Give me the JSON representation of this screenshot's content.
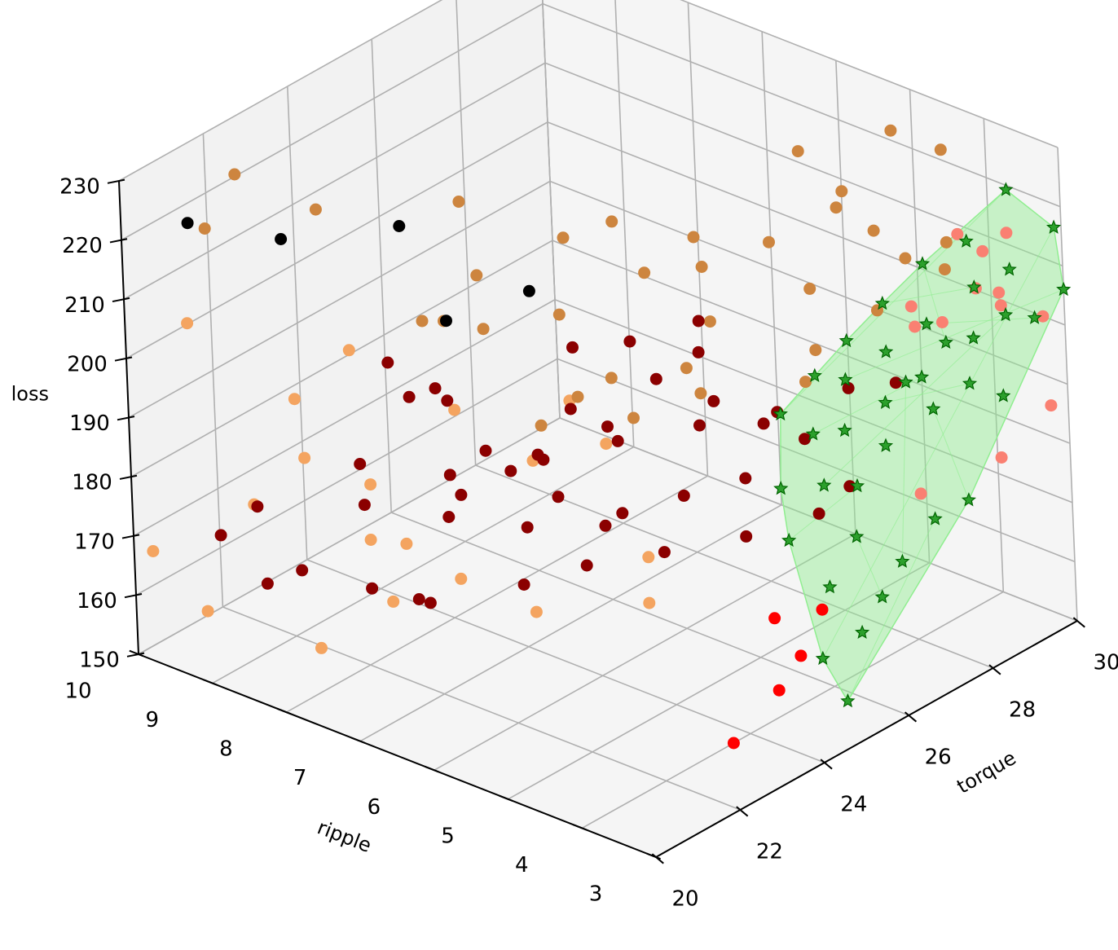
{
  "chart_data": {
    "type": "scatter3d",
    "title": "",
    "xlabel": "torque",
    "ylabel": "ripple",
    "zlabel": "loss",
    "xlim": [
      20,
      30
    ],
    "ylim": [
      3,
      10
    ],
    "zlim": [
      150,
      230
    ],
    "x_ticks": [
      "20",
      "22",
      "24",
      "26",
      "28",
      "30"
    ],
    "y_ticks": [
      "3",
      "4",
      "5",
      "6",
      "7",
      "8",
      "9",
      "10"
    ],
    "z_ticks": [
      "150",
      "160",
      "170",
      "180",
      "190",
      "200",
      "210",
      "220",
      "230"
    ],
    "grid": true,
    "colors": {
      "pane_back": "#f2f2f2",
      "pane_side": "#f5f5f5",
      "pane_floor": "#f5f5f5",
      "grid": "#b0b0b0"
    },
    "series": [
      {
        "color": "#f4a460",
        "marker": "circle",
        "points": [
          [
            20.1,
            9.8,
            168
          ],
          [
            20.3,
            9.2,
            160
          ],
          [
            20.2,
            7.6,
            162
          ],
          [
            20.8,
            8.8,
            178
          ],
          [
            21.0,
            8.2,
            188
          ],
          [
            21.5,
            8.6,
            194
          ],
          [
            20.9,
            7.0,
            170
          ],
          [
            21.6,
            7.2,
            176
          ],
          [
            22.0,
            7.9,
            181
          ],
          [
            22.5,
            7.0,
            196
          ],
          [
            22.8,
            8.4,
            166
          ],
          [
            23.0,
            7.3,
            164
          ],
          [
            23.2,
            6.4,
            162
          ],
          [
            23.6,
            6.6,
            185
          ],
          [
            24.0,
            6.3,
            195
          ],
          [
            24.3,
            6.0,
            188
          ],
          [
            24.5,
            5.6,
            170
          ],
          [
            20.6,
            9.5,
            206
          ],
          [
            21.8,
            8.0,
            204
          ],
          [
            23.8,
            5.2,
            167
          ]
        ]
      },
      {
        "color": "#cd853f",
        "marker": "circle",
        "points": [
          [
            21.0,
            9.0,
            232
          ],
          [
            21.5,
            8.2,
            228
          ],
          [
            21.1,
            9.5,
            220
          ],
          [
            22.8,
            7.0,
            230
          ],
          [
            22.3,
            6.5,
            222
          ],
          [
            22.0,
            6.8,
            214
          ],
          [
            23.5,
            6.0,
            226
          ],
          [
            23.8,
            5.5,
            230
          ],
          [
            23.0,
            5.8,
            216
          ],
          [
            24.0,
            5.2,
            222
          ],
          [
            24.5,
            4.8,
            228
          ],
          [
            24.3,
            4.5,
            216
          ],
          [
            25.0,
            5.0,
            220
          ],
          [
            25.4,
            4.3,
            226
          ],
          [
            25.8,
            4.0,
            218
          ],
          [
            26.5,
            4.5,
            236
          ],
          [
            26.8,
            4.1,
            230
          ],
          [
            27.0,
            3.8,
            224
          ],
          [
            27.5,
            4.6,
            222
          ],
          [
            27.2,
            3.5,
            220
          ],
          [
            28.5,
            4.4,
            232
          ],
          [
            28.8,
            3.9,
            230
          ],
          [
            28.0,
            3.4,
            220
          ],
          [
            27.6,
            3.2,
            218
          ],
          [
            26.5,
            3.5,
            214
          ],
          [
            25.2,
            3.6,
            212
          ],
          [
            24.6,
            3.4,
            210
          ],
          [
            23.2,
            4.2,
            214
          ],
          [
            22.8,
            5.0,
            210
          ],
          [
            22.6,
            4.6,
            206
          ],
          [
            21.8,
            5.4,
            204
          ],
          [
            22.0,
            5.0,
            210
          ],
          [
            21.9,
            6.2,
            216
          ],
          [
            23.0,
            3.9,
            212
          ],
          [
            21.5,
            6.8,
            216
          ]
        ]
      },
      {
        "color": "#8b0000",
        "marker": "circle",
        "points": [
          [
            21.0,
            7.0,
            210
          ],
          [
            21.4,
            6.6,
            206
          ],
          [
            21.8,
            7.2,
            200
          ],
          [
            21.5,
            6.0,
            198
          ],
          [
            22.5,
            5.4,
            204
          ],
          [
            22.2,
            5.7,
            196
          ],
          [
            22.4,
            6.2,
            190
          ],
          [
            23.0,
            5.2,
            200
          ],
          [
            23.5,
            4.8,
            208
          ],
          [
            24.0,
            4.5,
            212
          ],
          [
            23.8,
            4.2,
            206
          ],
          [
            24.6,
            4.0,
            200
          ],
          [
            25.2,
            3.8,
            196
          ],
          [
            24.8,
            4.4,
            188
          ],
          [
            24.2,
            4.9,
            185
          ],
          [
            23.6,
            5.4,
            182
          ],
          [
            22.8,
            5.8,
            186
          ],
          [
            21.9,
            6.6,
            186
          ],
          [
            21.0,
            7.4,
            184
          ],
          [
            20.2,
            8.4,
            182
          ],
          [
            20.0,
            8.8,
            176
          ],
          [
            20.5,
            8.0,
            172
          ],
          [
            21.5,
            7.0,
            168
          ],
          [
            22.6,
            6.2,
            170
          ],
          [
            23.4,
            5.8,
            172
          ],
          [
            24.2,
            5.2,
            174
          ],
          [
            25.1,
            4.6,
            176
          ],
          [
            25.8,
            4.0,
            180
          ],
          [
            26.2,
            3.8,
            184
          ],
          [
            21.1,
            7.5,
            190
          ],
          [
            22.0,
            6.8,
            188
          ],
          [
            23.0,
            6.1,
            190
          ],
          [
            23.9,
            5.6,
            192
          ],
          [
            24.8,
            5.0,
            194
          ],
          [
            25.6,
            4.4,
            196
          ],
          [
            26.6,
            4.0,
            198
          ],
          [
            27.2,
            3.7,
            198
          ],
          [
            24.2,
            4.6,
            216
          ],
          [
            23.6,
            5.2,
            212
          ],
          [
            22.6,
            5.4,
            214
          ],
          [
            21.5,
            6.5,
            204
          ],
          [
            22.1,
            6.9,
            180
          ],
          [
            22.9,
            6.3,
            178
          ],
          [
            23.7,
            5.7,
            178
          ],
          [
            22.1,
            7.2,
            164
          ],
          [
            21.6,
            7.7,
            166
          ],
          [
            20.7,
            8.6,
            166
          ]
        ]
      },
      {
        "color": "#000000",
        "marker": "circle",
        "points": [
          [
            20.2,
            9.2,
            226
          ],
          [
            21.0,
            8.4,
            224
          ],
          [
            21.9,
            7.3,
            228
          ],
          [
            23.0,
            6.2,
            218
          ],
          [
            22.9,
            7.3,
            208
          ]
        ]
      },
      {
        "color": "#ff0000",
        "marker": "circle",
        "points": [
          [
            23.6,
            4.0,
            150
          ],
          [
            24.2,
            3.7,
            158
          ],
          [
            24.4,
            3.5,
            164
          ],
          [
            24.6,
            3.3,
            172
          ],
          [
            24.5,
            3.9,
            168
          ]
        ]
      },
      {
        "color": "#fa8072",
        "marker": "circle",
        "points": [
          [
            28.6,
            3.6,
            218
          ],
          [
            29.0,
            3.5,
            214
          ],
          [
            29.4,
            3.4,
            216
          ],
          [
            28.3,
            3.2,
            212
          ],
          [
            28.7,
            3.1,
            208
          ],
          [
            29.0,
            3.3,
            208
          ],
          [
            28.0,
            3.5,
            206
          ],
          [
            27.8,
            3.8,
            208
          ],
          [
            28.2,
            4.0,
            202
          ],
          [
            30.0,
            3.3,
            200
          ],
          [
            29.6,
            3.0,
            188
          ],
          [
            28.4,
            3.0,
            184
          ],
          [
            27.0,
            3.3,
            182
          ]
        ]
      },
      {
        "color": "#2ca02c",
        "marker": "star",
        "hull": true,
        "hull_color": "#90ee90",
        "points": [
          [
            24.6,
            3.0,
            158
          ],
          [
            24.4,
            3.2,
            165
          ],
          [
            25.0,
            3.0,
            168
          ],
          [
            25.5,
            3.0,
            172
          ],
          [
            26.0,
            3.0,
            176
          ],
          [
            26.8,
            3.0,
            180
          ],
          [
            27.6,
            3.0,
            180
          ],
          [
            24.8,
            3.3,
            175
          ],
          [
            25.3,
            3.2,
            182
          ],
          [
            25.7,
            3.4,
            188
          ],
          [
            26.4,
            3.4,
            192
          ],
          [
            27.2,
            3.2,
            196
          ],
          [
            27.9,
            3.1,
            198
          ],
          [
            28.5,
            3.0,
            194
          ],
          [
            24.4,
            3.6,
            183
          ],
          [
            25.1,
            3.5,
            190
          ],
          [
            25.8,
            3.6,
            196
          ],
          [
            26.6,
            3.5,
            198
          ],
          [
            27.3,
            3.4,
            200
          ],
          [
            28.2,
            3.2,
            204
          ],
          [
            28.8,
            3.1,
            206
          ],
          [
            29.3,
            3.0,
            204
          ],
          [
            24.6,
            3.8,
            190
          ],
          [
            25.4,
            3.8,
            196
          ],
          [
            26.2,
            3.8,
            202
          ],
          [
            27.0,
            3.7,
            204
          ],
          [
            27.8,
            3.6,
            206
          ],
          [
            28.6,
            3.4,
            210
          ],
          [
            29.1,
            3.2,
            212
          ],
          [
            30.0,
            3.0,
            206
          ],
          [
            25.0,
            4.0,
            200
          ],
          [
            26.6,
            4.0,
            206
          ],
          [
            27.3,
            3.9,
            210
          ],
          [
            28.1,
            3.8,
            214
          ],
          [
            28.8,
            3.6,
            216
          ],
          [
            29.6,
            3.5,
            222
          ],
          [
            30.0,
            3.1,
            216
          ],
          [
            26.0,
            4.1,
            202
          ],
          [
            28.4,
            3.7,
            200
          ],
          [
            27.6,
            3.8,
            196
          ]
        ]
      }
    ]
  }
}
